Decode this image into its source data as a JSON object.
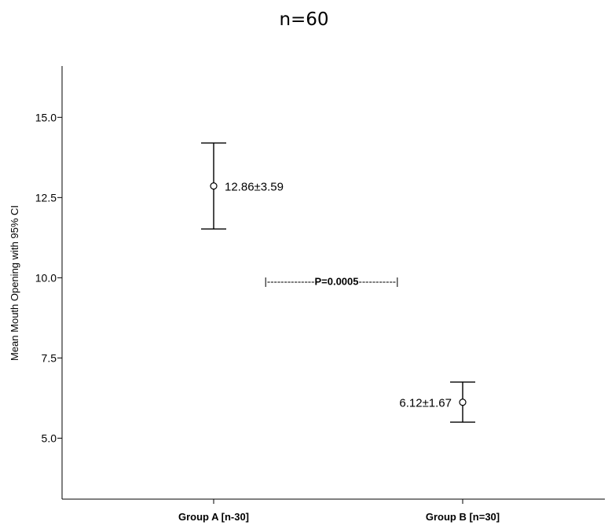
{
  "chart_data": {
    "type": "errorbar",
    "title": "n=60",
    "ylabel": "Mean Mouth Opening with 95% CI",
    "xlabel": "",
    "ylim": [
      3.1,
      16.6
    ],
    "yticks": [
      5.0,
      7.5,
      10.0,
      12.5,
      15.0
    ],
    "ytick_labels": [
      "5.0",
      "7.5",
      "10.0",
      "12.5",
      "15.0"
    ],
    "categories": [
      "Group A [n-30]",
      "Group B [n=30]"
    ],
    "points": [
      {
        "category": "Group A [n-30]",
        "mean": 12.86,
        "lower": 11.52,
        "upper": 14.2,
        "label": "12.86±3.59"
      },
      {
        "category": "Group B [n=30]",
        "mean": 6.12,
        "lower": 5.5,
        "upper": 6.75,
        "label": "6.12±1.67"
      }
    ],
    "annotation": {
      "prefix": "|--------------",
      "text": "P=0.0005",
      "suffix": "-----------|",
      "y": 9.9
    }
  }
}
